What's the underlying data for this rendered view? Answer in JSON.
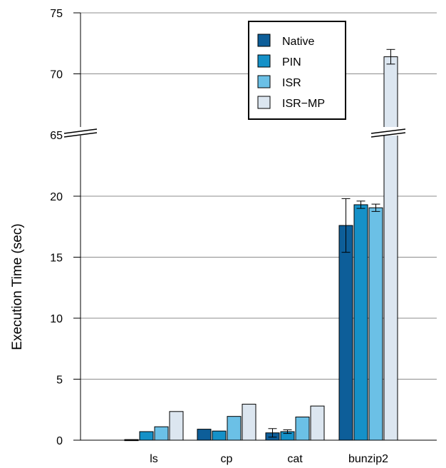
{
  "chart_data": {
    "type": "bar",
    "title": "",
    "xlabel": "",
    "ylabel": "Execution Time (sec)",
    "categories": [
      "ls",
      "cp",
      "cat",
      "bunzip2"
    ],
    "axis_break": {
      "from": 20,
      "to": 65
    },
    "ylim": [
      0,
      75
    ],
    "yticks": [
      0,
      5,
      10,
      15,
      20,
      65,
      70,
      75
    ],
    "grid": true,
    "legend_position": "top-right",
    "series": [
      {
        "name": "Native",
        "color": "#0d5e99",
        "values": [
          0.05,
          0.9,
          0.6,
          17.6
        ],
        "errors": [
          0,
          0,
          0.35,
          2.2
        ]
      },
      {
        "name": "PIN",
        "color": "#1591c8",
        "values": [
          0.7,
          0.75,
          0.7,
          19.3
        ],
        "errors": [
          0,
          0,
          0.15,
          0.3
        ]
      },
      {
        "name": "ISR",
        "color": "#6bc0e6",
        "values": [
          1.1,
          1.95,
          1.9,
          19.05
        ],
        "errors": [
          0,
          0,
          0,
          0.3
        ]
      },
      {
        "name": "ISR−MP",
        "color": "#dce6f0",
        "values": [
          2.35,
          2.95,
          2.8,
          71.4
        ],
        "errors": [
          0,
          0,
          0,
          0.6
        ]
      }
    ]
  }
}
